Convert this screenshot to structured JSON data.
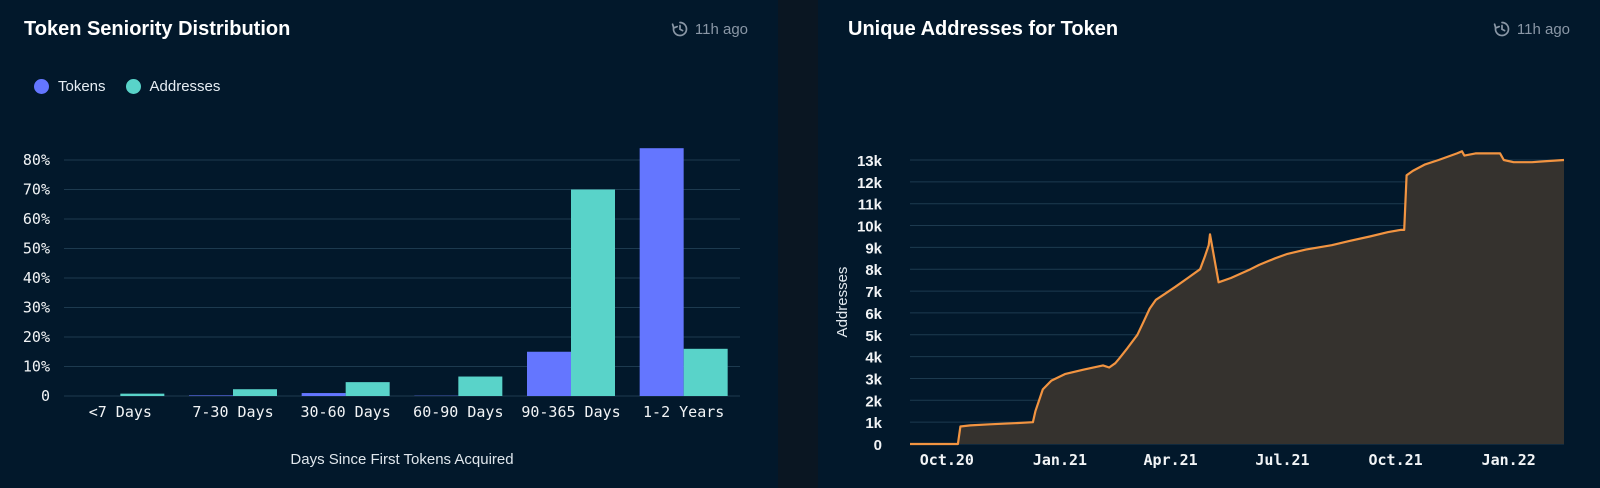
{
  "colors": {
    "tokens": "#6476ff",
    "addresses": "#59d3c9",
    "line": "#f29441",
    "area": "#35322e",
    "grid": "#1d3a4f",
    "tick": "#f2f4f6"
  },
  "left_panel": {
    "title": "Token Seniority Distribution",
    "updated": "11h ago",
    "updated_icon": "refresh-clock-icon",
    "legend": [
      {
        "label": "Tokens",
        "color": "#6476ff"
      },
      {
        "label": "Addresses",
        "color": "#59d3c9"
      }
    ]
  },
  "right_panel": {
    "title": "Unique Addresses for Token",
    "updated": "11h ago",
    "updated_icon": "refresh-clock-icon"
  },
  "chart_data": [
    {
      "type": "bar",
      "title": "Token Seniority Distribution",
      "xlabel": "Days Since First Tokens Acquired",
      "ylabel": "",
      "categories": [
        "<7 Days",
        "7-30 Days",
        "30-60 Days",
        "60-90 Days",
        "90-365 Days",
        "1-2 Years"
      ],
      "series": [
        {
          "name": "Tokens",
          "values": [
            0,
            0.2,
            1,
            0.1,
            15,
            84
          ]
        },
        {
          "name": "Addresses",
          "values": [
            0.8,
            2.3,
            4.7,
            6.6,
            70,
            16
          ]
        }
      ],
      "yticks": [
        "0",
        "10%",
        "20%",
        "30%",
        "40%",
        "50%",
        "60%",
        "70%",
        "80%"
      ],
      "ylim": [
        0,
        80
      ],
      "grid": true,
      "legend": "top-left"
    },
    {
      "type": "area",
      "title": "Unique Addresses for Token",
      "xlabel": "",
      "ylabel": "Addresses",
      "xticks": [
        "Oct.20",
        "Jan.21",
        "Apr.21",
        "Jul.21",
        "Oct.21",
        "Jan.22"
      ],
      "yticks": [
        "0",
        "1k",
        "2k",
        "3k",
        "4k",
        "5k",
        "6k",
        "7k",
        "8k",
        "9k",
        "10k",
        "11k",
        "12k",
        "13k"
      ],
      "ylim": [
        0,
        13000
      ],
      "xlim": [
        "2020-09-01",
        "2022-02-15"
      ],
      "grid": true,
      "series": [
        {
          "x": [
            "2020-09-01",
            "2020-10-10",
            "2020-10-12",
            "2020-10-20",
            "2020-11-05",
            "2020-11-25",
            "2020-12-10",
            "2020-12-12",
            "2020-12-18",
            "2020-12-25",
            "2021-01-05",
            "2021-01-20",
            "2021-02-05",
            "2021-02-10",
            "2021-02-15",
            "2021-02-18",
            "2021-02-25",
            "2021-03-05",
            "2021-03-10",
            "2021-03-15",
            "2021-03-20",
            "2021-03-28",
            "2021-04-05",
            "2021-04-15",
            "2021-04-25",
            "2021-04-29",
            "2021-05-02",
            "2021-05-03",
            "2021-05-10",
            "2021-05-20",
            "2021-06-05",
            "2021-06-12",
            "2021-06-25",
            "2021-07-05",
            "2021-07-20",
            "2021-08-10",
            "2021-08-25",
            "2021-09-10",
            "2021-09-25",
            "2021-10-05",
            "2021-10-08",
            "2021-10-10",
            "2021-10-15",
            "2021-10-25",
            "2021-11-05",
            "2021-11-20",
            "2021-11-24",
            "2021-11-26",
            "2021-12-05",
            "2021-12-15",
            "2021-12-25",
            "2021-12-28",
            "2022-01-05",
            "2022-01-20",
            "2022-02-01",
            "2022-02-15"
          ],
          "y": [
            0,
            0,
            800,
            850,
            900,
            950,
            1000,
            1500,
            2500,
            2900,
            3200,
            3400,
            3600,
            3500,
            3700,
            3900,
            4400,
            5000,
            5600,
            6200,
            6600,
            6900,
            7200,
            7600,
            8000,
            8600,
            9100,
            9600,
            7400,
            7600,
            8000,
            8200,
            8500,
            8700,
            8900,
            9100,
            9300,
            9500,
            9700,
            9800,
            9800,
            12300,
            12500,
            12800,
            13000,
            13300,
            13400,
            13200,
            13300,
            13300,
            13300,
            13000,
            12900,
            12900,
            12950,
            13000
          ]
        }
      ]
    }
  ]
}
